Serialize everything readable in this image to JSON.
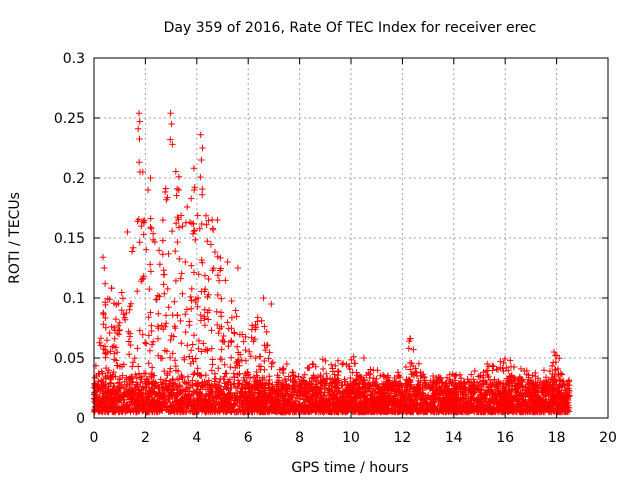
{
  "chart_data": {
    "type": "scatter",
    "title": "Day 359 of 2016, Rate Of TEC Index for receiver erec",
    "xlabel": "GPS time / hours",
    "ylabel": "ROTI / TECUs",
    "xlim": [
      0,
      20
    ],
    "ylim": [
      0,
      0.3
    ],
    "grid": true,
    "marker": "plus",
    "series_color": "#ff0000",
    "x_ticks": [
      {
        "value": 0,
        "label": "0"
      },
      {
        "value": 2,
        "label": "2"
      },
      {
        "value": 4,
        "label": "4"
      },
      {
        "value": 6,
        "label": "6"
      },
      {
        "value": 8,
        "label": "8"
      },
      {
        "value": 10,
        "label": "10"
      },
      {
        "value": 12,
        "label": "12"
      },
      {
        "value": 14,
        "label": "14"
      },
      {
        "value": 16,
        "label": "16"
      },
      {
        "value": 18,
        "label": "18"
      },
      {
        "value": 20,
        "label": "20"
      }
    ],
    "y_ticks": [
      {
        "value": 0,
        "label": "0"
      },
      {
        "value": 0.05,
        "label": "0.05"
      },
      {
        "value": 0.1,
        "label": "0.1"
      },
      {
        "value": 0.15,
        "label": "0.15"
      },
      {
        "value": 0.2,
        "label": "0.2"
      },
      {
        "value": 0.25,
        "label": "0.25"
      },
      {
        "value": 0.3,
        "label": "0.3"
      }
    ],
    "envelope_hours": [
      0,
      0.5,
      1,
      1.5,
      1.8,
      2.2,
      2.6,
      3,
      3.5,
      4,
      4.5,
      5,
      5.5,
      6,
      6.5,
      7,
      7.5,
      8,
      9,
      10,
      11,
      12,
      12.3,
      13,
      14,
      15,
      16,
      17,
      17.5,
      18,
      18.5
    ],
    "envelope_max_roti": [
      0.03,
      0.13,
      0.1,
      0.15,
      0.25,
      0.2,
      0.16,
      0.25,
      0.17,
      0.23,
      0.17,
      0.13,
      0.09,
      0.07,
      0.1,
      0.05,
      0.04,
      0.04,
      0.05,
      0.05,
      0.04,
      0.04,
      0.07,
      0.03,
      0.04,
      0.04,
      0.05,
      0.04,
      0.04,
      0.055,
      0.03
    ],
    "baseline_roti_range": [
      0.005,
      0.03
    ],
    "peak_points": [
      {
        "x": 1.75,
        "y": 0.254
      },
      {
        "x": 1.78,
        "y": 0.247
      },
      {
        "x": 1.72,
        "y": 0.241
      },
      {
        "x": 2.98,
        "y": 0.254
      },
      {
        "x": 3.02,
        "y": 0.245
      },
      {
        "x": 2.97,
        "y": 0.232
      },
      {
        "x": 3.05,
        "y": 0.228
      },
      {
        "x": 4.15,
        "y": 0.236
      },
      {
        "x": 4.22,
        "y": 0.225
      },
      {
        "x": 4.18,
        "y": 0.215
      },
      {
        "x": 1.9,
        "y": 0.205
      },
      {
        "x": 2.1,
        "y": 0.19
      },
      {
        "x": 2.2,
        "y": 0.2
      },
      {
        "x": 3.3,
        "y": 0.19
      },
      {
        "x": 3.9,
        "y": 0.19
      },
      {
        "x": 4.6,
        "y": 0.165
      },
      {
        "x": 4.8,
        "y": 0.165
      },
      {
        "x": 1.3,
        "y": 0.155
      },
      {
        "x": 0.35,
        "y": 0.134
      },
      {
        "x": 0.4,
        "y": 0.125
      },
      {
        "x": 5.2,
        "y": 0.13
      },
      {
        "x": 5.6,
        "y": 0.125
      },
      {
        "x": 6.6,
        "y": 0.1
      },
      {
        "x": 6.9,
        "y": 0.095
      },
      {
        "x": 7.5,
        "y": 0.045
      },
      {
        "x": 8.5,
        "y": 0.045
      },
      {
        "x": 10.1,
        "y": 0.051
      },
      {
        "x": 10.5,
        "y": 0.05
      },
      {
        "x": 12.3,
        "y": 0.066
      },
      {
        "x": 12.25,
        "y": 0.058
      },
      {
        "x": 15.3,
        "y": 0.045
      },
      {
        "x": 16.2,
        "y": 0.048
      },
      {
        "x": 17.9,
        "y": 0.055
      },
      {
        "x": 17.95,
        "y": 0.052
      }
    ]
  }
}
